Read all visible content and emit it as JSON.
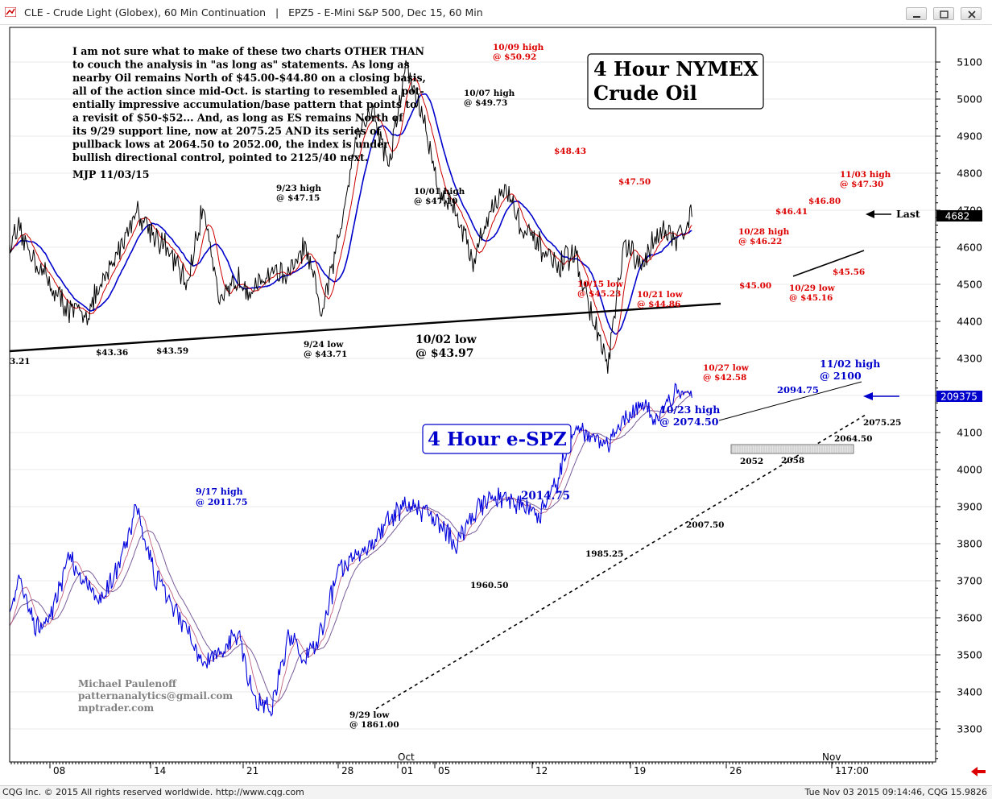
{
  "window": {
    "title": "CLE - Crude Light (Globex), 60 Min Continuation   |   EPZ5 - E-Mini S&P 500, Dec 15, 60 Min"
  },
  "status": {
    "left": "CQG Inc. © 2015 All rights reserved worldwide. http://www.cqg.com",
    "right": "Tue Nov 03 2015 09:14:46, CQG 15.9826"
  },
  "colors": {
    "crude_price": "#000000",
    "crude_ma_fast": "#cc0000",
    "crude_ma_slow": "#0000cc",
    "spz_price": "#0000dd",
    "spz_ma": "#8060a0",
    "annotation_red": "#dd0000",
    "annotation_blue": "#0000cc",
    "annotation_black": "#000000",
    "last_box_crude": "#000000",
    "last_box_spz": "#0000cc"
  },
  "commentary": [
    "I am not sure what to make of these two charts OTHER THAN",
    "to couch the analysis in \"as long as\" statements. As long as",
    "nearby Oil remains North of $45.00-$44.80 on a closing basis,",
    "all of the action since mid-Oct. is starting to resembled a pot-",
    "entially impressive accumulation/base pattern that points to",
    "a revisit of $50-$52... And, as long as ES remains North of",
    "its 9/29 support line, now at 2075.25 AND its series of",
    "pullback lows at 2064.50 to 2052.00, the index is under",
    "bullish directional control, pointed to 2125/40 next.",
    "MJP 11/03/15"
  ],
  "chart_data": [
    {
      "type": "line",
      "title": "4 Hour NYMEX Crude Oil",
      "title_lines": [
        "4 Hour NYMEX",
        "Crude Oil"
      ],
      "instrument": "CLE - Crude Light (Globex), 60 Min Continuation",
      "last_label": "Last",
      "last_value": "4682",
      "series": [
        {
          "name": "CLE",
          "points": [
            [
              "09/04",
              4580
            ],
            [
              "09/08",
              4640
            ],
            [
              "09/10",
              4490
            ],
            [
              "09/11",
              4430
            ],
            [
              "09/14",
              4420
            ],
            [
              "09/15",
              4500
            ],
            [
              "09/17",
              4700
            ],
            [
              "09/18",
              4640
            ],
            [
              "09/21",
              4580
            ],
            [
              "09/22",
              4500
            ],
            [
              "09/23",
              4715
            ],
            [
              "09/24",
              4440
            ],
            [
              "09/25",
              4520
            ],
            [
              "09/28",
              4480
            ],
            [
              "09/29",
              4540
            ],
            [
              "09/30",
              4520
            ],
            [
              "10/01",
              4600
            ],
            [
              "10/02",
              4420
            ],
            [
              "10/05",
              4620
            ],
            [
              "10/06",
              4900
            ],
            [
              "10/07",
              4973
            ],
            [
              "10/08",
              4820
            ],
            [
              "10/09",
              5092
            ],
            [
              "10/12",
              4950
            ],
            [
              "10/13",
              4750
            ],
            [
              "10/14",
              4700
            ],
            [
              "10/15",
              4560
            ],
            [
              "10/16",
              4700
            ],
            [
              "10/19",
              4760
            ],
            [
              "10/20",
              4640
            ],
            [
              "10/21",
              4600
            ],
            [
              "10/22",
              4540
            ],
            [
              "10/23",
              4590
            ],
            [
              "10/26",
              4420
            ],
            [
              "10/27",
              4280
            ],
            [
              "10/28",
              4610
            ],
            [
              "10/29",
              4540
            ],
            [
              "10/30",
              4650
            ],
            [
              "11/02",
              4620
            ],
            [
              "11/03",
              4682
            ]
          ]
        }
      ],
      "annotations_red": [
        {
          "label": [
            "10/09 high",
            "@ $50.92"
          ]
        },
        {
          "label": [
            "$48.43"
          ]
        },
        {
          "label": [
            "$47.50"
          ]
        },
        {
          "label": [
            "10/15 low",
            "@ $45.23"
          ]
        },
        {
          "label": [
            "10/21 low",
            "@ $44.86"
          ]
        },
        {
          "label": [
            "$45.00"
          ]
        },
        {
          "label": [
            "10/27 low",
            "@ $42.58"
          ]
        },
        {
          "label": [
            "10/28 high",
            "@ $46.22"
          ]
        },
        {
          "label": [
            "$46.41"
          ]
        },
        {
          "label": [
            "$46.80"
          ]
        },
        {
          "label": [
            "11/03 high",
            "@ $47.30"
          ]
        },
        {
          "label": [
            "$45.56"
          ]
        },
        {
          "label": [
            "10/29 low",
            "@ $45.16"
          ]
        }
      ],
      "annotations_black": [
        {
          "label": [
            "9/23 high",
            "@ $47.15"
          ]
        },
        {
          "label": [
            "10/07 high",
            "@ $49.73"
          ]
        },
        {
          "label": [
            "10/01 high",
            "@ $47.10"
          ]
        },
        {
          "label": [
            "$43.36"
          ]
        },
        {
          "label": [
            "$43.59"
          ]
        },
        {
          "label": [
            "9/24 low",
            "@ $43.71"
          ]
        },
        {
          "label": [
            "10/02 low",
            "@ $43.97"
          ]
        },
        {
          "label": [
            "3.21"
          ]
        }
      ]
    },
    {
      "type": "line",
      "title": "4 Hour e-SPZ",
      "instrument": "EPZ5 - E-Mini S&P 500, Dec 15, 60 Min",
      "last_value": "209375",
      "series": [
        {
          "name": "EPZ5",
          "points": [
            [
              "09/04",
              3550
            ],
            [
              "09/08",
              3700
            ],
            [
              "09/09",
              3580
            ],
            [
              "09/10",
              3620
            ],
            [
              "09/11",
              3770
            ],
            [
              "09/14",
              3680
            ],
            [
              "09/15",
              3650
            ],
            [
              "09/16",
              3750
            ],
            [
              "09/17",
              3900
            ],
            [
              "09/18",
              3720
            ],
            [
              "09/21",
              3640
            ],
            [
              "09/22",
              3560
            ],
            [
              "09/23",
              3480
            ],
            [
              "09/24",
              3500
            ],
            [
              "09/25",
              3560
            ],
            [
              "09/28",
              3380
            ],
            [
              "09/29",
              3350
            ],
            [
              "09/30",
              3550
            ],
            [
              "10/01",
              3490
            ],
            [
              "10/02",
              3560
            ],
            [
              "10/05",
              3730
            ],
            [
              "10/06",
              3760
            ],
            [
              "10/07",
              3800
            ],
            [
              "10/08",
              3870
            ],
            [
              "10/09",
              3910
            ],
            [
              "10/12",
              3890
            ],
            [
              "10/13",
              3860
            ],
            [
              "10/14",
              3800
            ],
            [
              "10/15",
              3880
            ],
            [
              "10/16",
              3930
            ],
            [
              "10/19",
              3920
            ],
            [
              "10/20",
              3900
            ],
            [
              "10/21",
              3880
            ],
            [
              "10/22",
              3960
            ],
            [
              "10/23",
              4120
            ],
            [
              "10/26",
              4090
            ],
            [
              "10/27",
              4070
            ],
            [
              "10/28",
              4140
            ],
            [
              "10/29",
              4170
            ],
            [
              "10/30",
              4130
            ],
            [
              "11/02",
              4200
            ],
            [
              "11/03",
              4194
            ]
          ]
        }
      ],
      "annotations_blue": [
        {
          "label": [
            "9/17 high",
            "@ 2011.75"
          ]
        },
        {
          "label": [
            "2014.75"
          ]
        },
        {
          "label": [
            "10/23 high",
            "@ 2074.50"
          ]
        },
        {
          "label": [
            "2094.75"
          ]
        },
        {
          "label": [
            "11/02 high",
            "@ 2100"
          ]
        }
      ],
      "annotations_black": [
        {
          "label": [
            "1960.50"
          ]
        },
        {
          "label": [
            "1985.25"
          ]
        },
        {
          "label": [
            "2007.50"
          ]
        },
        {
          "label": [
            "2075.25"
          ]
        },
        {
          "label": [
            "2064.50"
          ]
        },
        {
          "label": [
            "2052"
          ]
        },
        {
          "label": [
            "2058"
          ]
        },
        {
          "label": [
            "9/29 low",
            "@ 1861.00"
          ]
        }
      ]
    }
  ],
  "y_axis": {
    "min": 3220,
    "max": 5200,
    "ticks": [
      "5100",
      "5000",
      "4900",
      "4800",
      "4700",
      "4600",
      "4500",
      "4400",
      "4300",
      "4200",
      "4100",
      "4000",
      "3900",
      "3800",
      "3700",
      "3600",
      "3500",
      "3400",
      "3300"
    ]
  },
  "x_axis": {
    "labels": [
      "08",
      "14",
      "21",
      "28",
      "01",
      "05",
      "12",
      "19",
      "26",
      "1"
    ],
    "month_labels": [
      "Oct",
      "Nov"
    ],
    "last_time": "-17:00"
  },
  "credits": [
    "Michael Paulenoff",
    "patternanalytics@gmail.com",
    "mptrader.com"
  ]
}
